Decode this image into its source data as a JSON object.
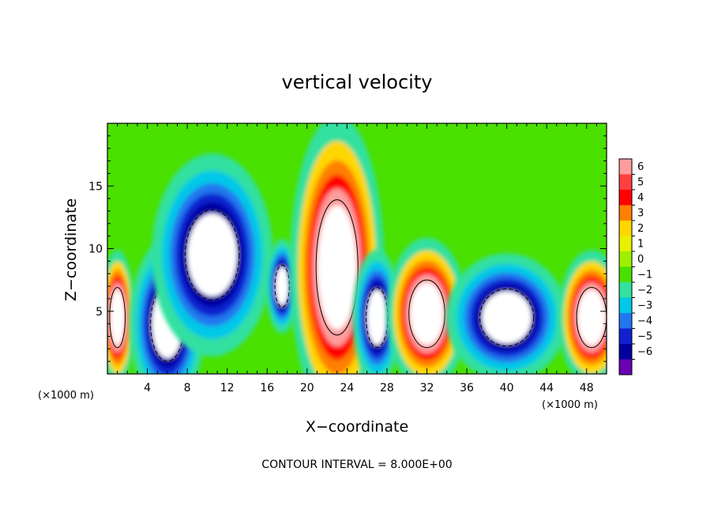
{
  "chart_data": {
    "type": "heatmap",
    "title": "vertical velocity",
    "xlabel": "X−coordinate",
    "ylabel": "Z−coordinate",
    "x_unit_label_left": "(×1000 m)",
    "x_unit_label_right": "(×1000 m)",
    "xlim": [
      0,
      50
    ],
    "ylim": [
      0,
      20
    ],
    "x_ticks": [
      4,
      8,
      12,
      16,
      20,
      24,
      28,
      32,
      36,
      40,
      44,
      48
    ],
    "x_tick_labels": [
      "4",
      "8",
      "12",
      "16",
      "20",
      "24",
      "28",
      "32",
      "36",
      "40",
      "44",
      "48"
    ],
    "y_ticks": [
      5,
      10,
      15
    ],
    "y_tick_labels": [
      "5",
      "10",
      "15"
    ],
    "colorbar": {
      "values": [
        6,
        5,
        4,
        3,
        2,
        1,
        0,
        -1,
        -2,
        -3,
        -4,
        -5,
        -6
      ],
      "labels": [
        "6",
        "5",
        "4",
        "3",
        "2",
        "1",
        "0",
        "−1",
        "−2",
        "−3",
        "−4",
        "−5",
        "−6"
      ],
      "colors": [
        "#ff9d9d",
        "#ff4040",
        "#ff0000",
        "#ff7f00",
        "#ffd700",
        "#e8f000",
        "#9ef000",
        "#4ae000",
        "#33e0a0",
        "#00c8e8",
        "#2277ee",
        "#1020d0",
        "#0000a0",
        "#6a00b0"
      ]
    },
    "background_color": "#4ae000",
    "features": [
      {
        "kind": "updraft",
        "x": 1.0,
        "z": 4.5,
        "half_width": 1.3,
        "half_height": 4.0
      },
      {
        "kind": "downdraft",
        "x": 6.0,
        "z": 4.0,
        "half_width": 2.8,
        "half_height": 5.0
      },
      {
        "kind": "downdraft",
        "x": 10.5,
        "z": 9.5,
        "half_width": 4.5,
        "half_height": 6.0
      },
      {
        "kind": "downdraft",
        "x": 17.5,
        "z": 7.0,
        "half_width": 1.2,
        "half_height": 2.8
      },
      {
        "kind": "updraft",
        "x": 23.0,
        "z": 8.5,
        "half_width": 3.5,
        "half_height": 9.0
      },
      {
        "kind": "downdraft",
        "x": 27.0,
        "z": 4.5,
        "half_width": 1.8,
        "half_height": 4.0
      },
      {
        "kind": "updraft",
        "x": 32.0,
        "z": 4.8,
        "half_width": 3.0,
        "half_height": 4.5
      },
      {
        "kind": "downdraft",
        "x": 40.0,
        "z": 4.5,
        "half_width": 4.5,
        "half_height": 3.8
      },
      {
        "kind": "updraft",
        "x": 48.5,
        "z": 4.5,
        "half_width": 2.5,
        "half_height": 4.0
      }
    ],
    "note": "CONTOUR INTERVAL = 8.000E+00"
  }
}
